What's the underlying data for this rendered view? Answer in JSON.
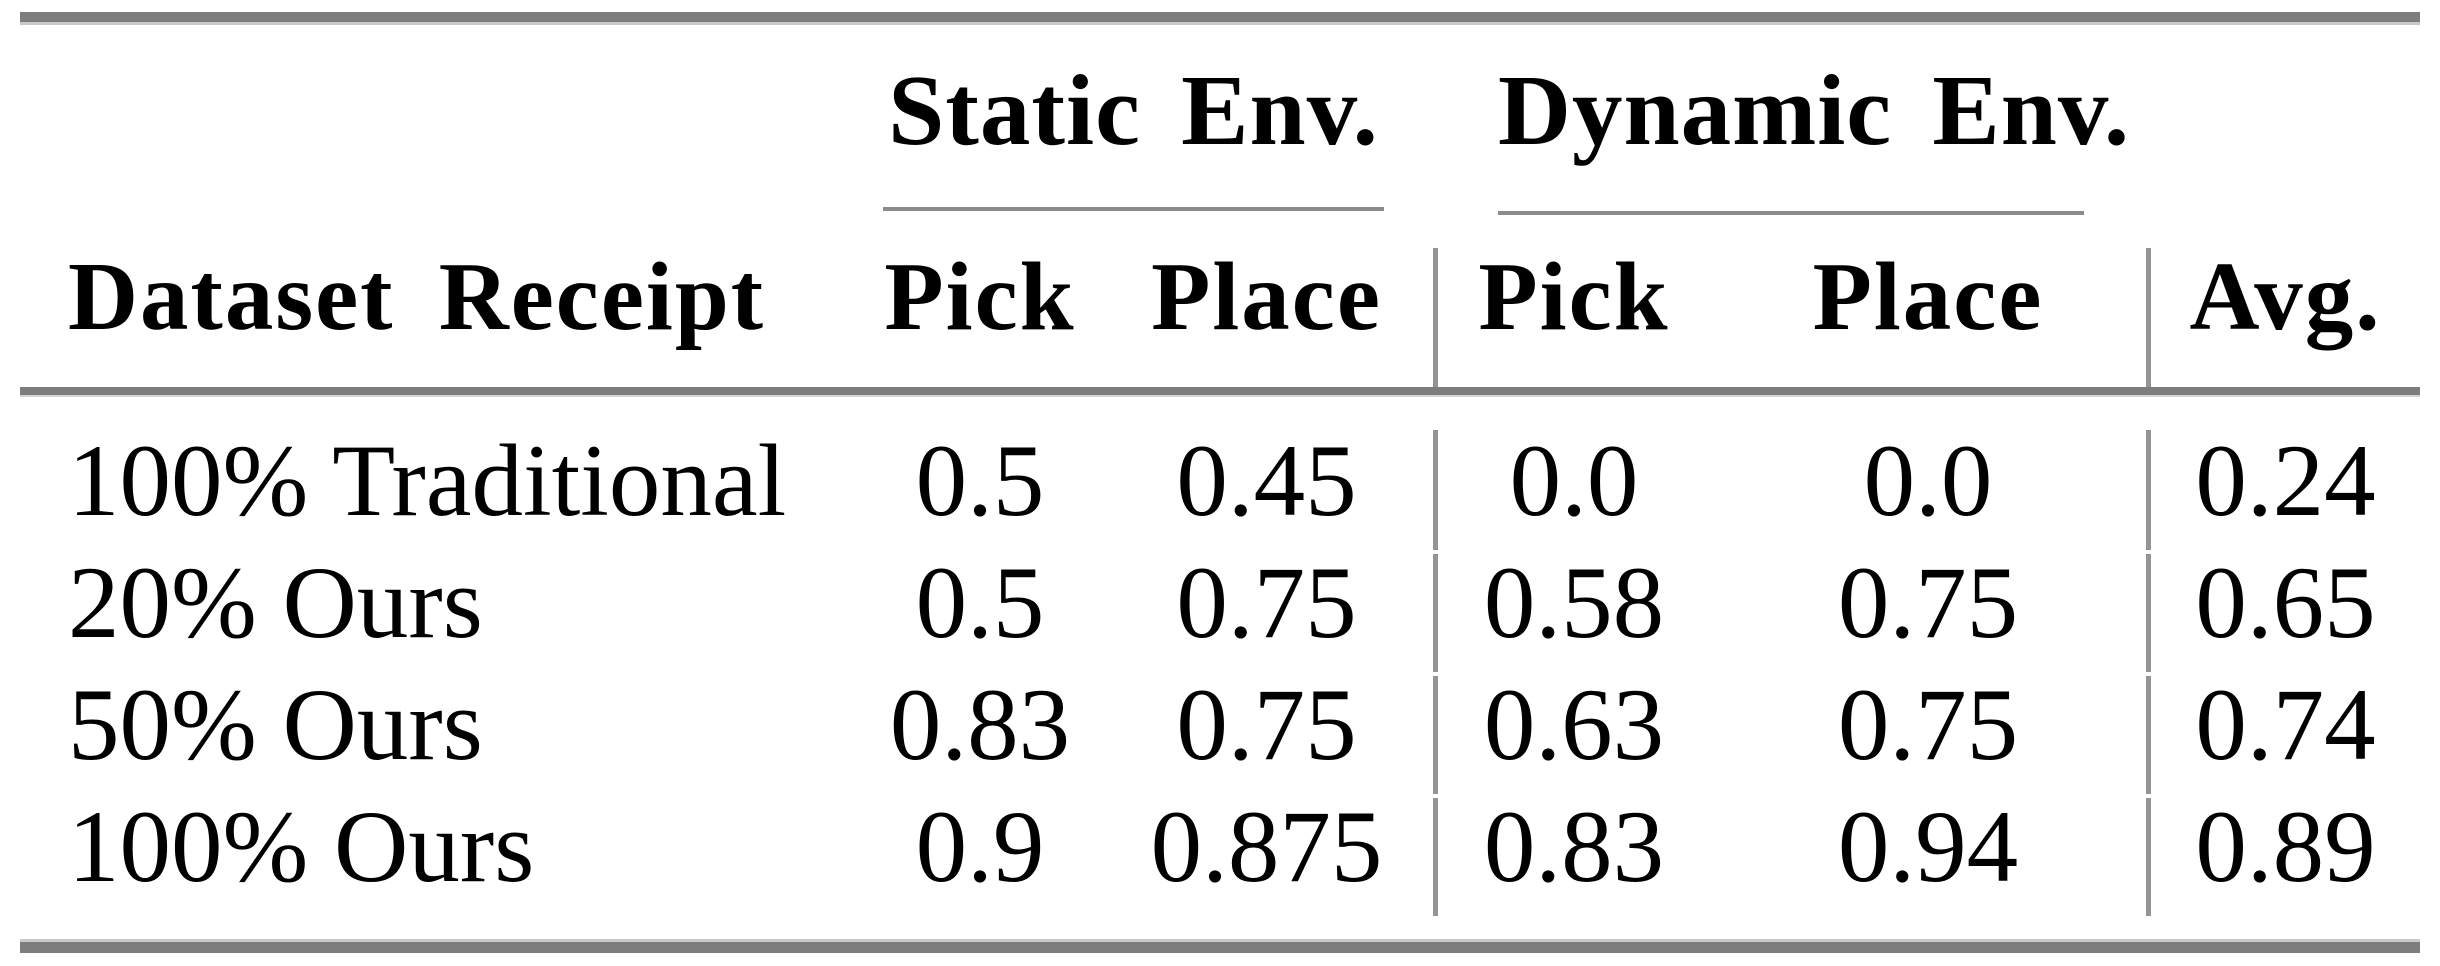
{
  "table": {
    "group_headers": [
      {
        "label": "Static Env."
      },
      {
        "label": "Dynamic Env."
      }
    ],
    "headers": {
      "row_label": "Dataset Receipt",
      "static_pick": "Pick",
      "static_place": "Place",
      "dynamic_pick": "Pick",
      "dynamic_place": "Place",
      "avg": "Avg."
    },
    "rows": [
      {
        "label": "100% Traditional",
        "values": [
          "0.5",
          "0.45",
          "0.0",
          "0.0",
          "0.24"
        ]
      },
      {
        "label": "20% Ours",
        "values": [
          "0.5",
          "0.75",
          "0.58",
          "0.75",
          "0.65"
        ]
      },
      {
        "label": "50% Ours",
        "values": [
          "0.83",
          "0.75",
          "0.63",
          "0.75",
          "0.74"
        ]
      },
      {
        "label": "100% Ours",
        "values": [
          "0.9",
          "0.875",
          "0.83",
          "0.94",
          "0.89"
        ]
      }
    ],
    "colors": {
      "rule_heavy": "#7d7d7d",
      "rule_light": "#8b8b8b",
      "vertical_rule": "#949494",
      "text": "#000000",
      "background": "#ffffff"
    }
  },
  "chart_data": {
    "type": "table",
    "title": "",
    "columns": [
      "Dataset Receipt",
      "Static Env. Pick",
      "Static Env. Place",
      "Dynamic Env. Pick",
      "Dynamic Env. Place",
      "Avg."
    ],
    "rows": [
      [
        "100% Traditional",
        0.5,
        0.45,
        0.0,
        0.0,
        0.24
      ],
      [
        "20% Ours",
        0.5,
        0.75,
        0.58,
        0.75,
        0.65
      ],
      [
        "50% Ours",
        0.83,
        0.75,
        0.63,
        0.75,
        0.74
      ],
      [
        "100% Ours",
        0.9,
        0.875,
        0.83,
        0.94,
        0.89
      ]
    ]
  }
}
